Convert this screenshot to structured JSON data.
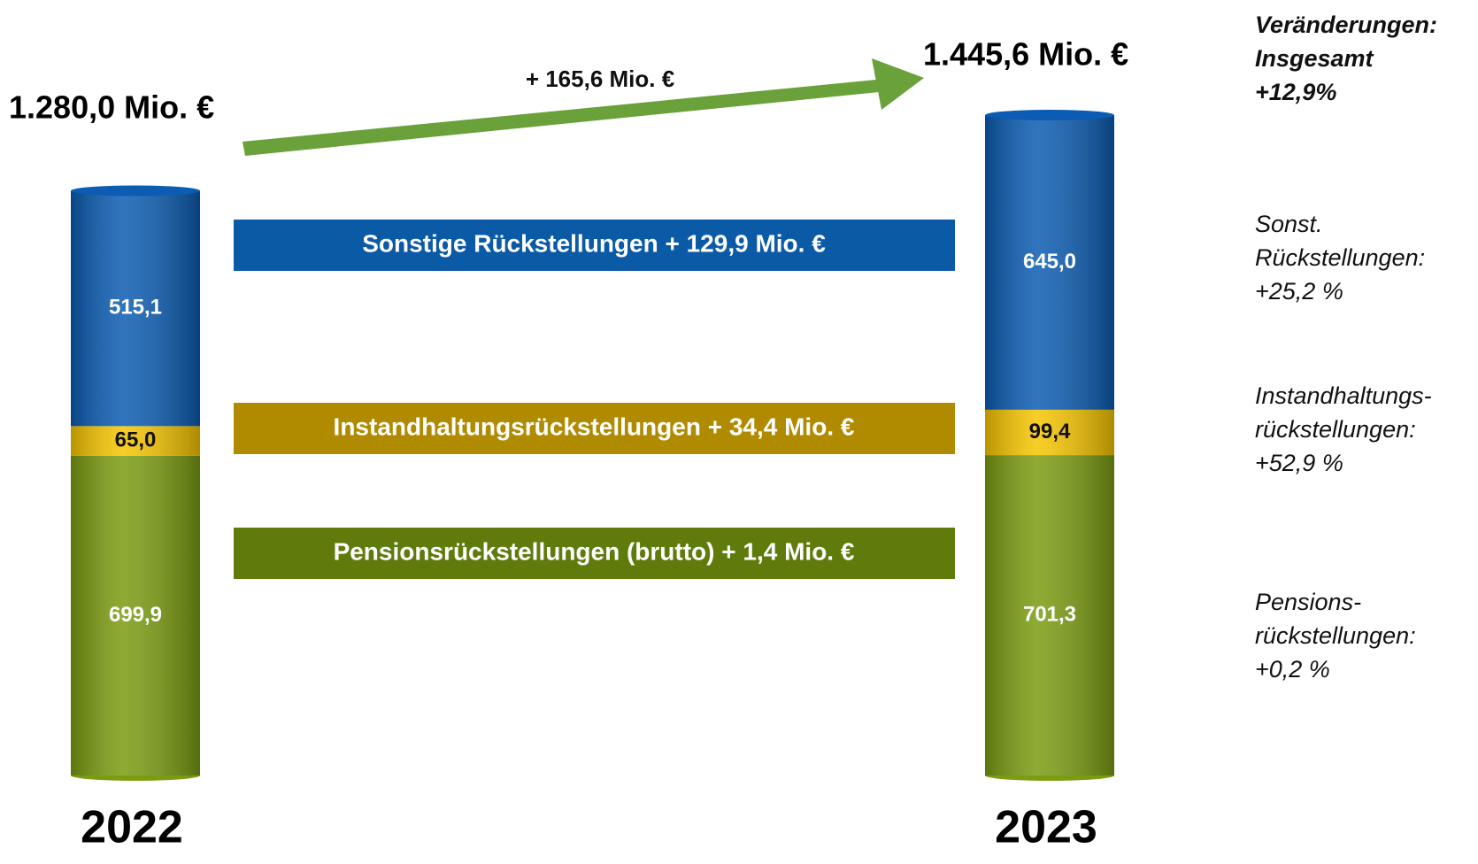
{
  "chart_data": {
    "type": "stacked-cylinder",
    "categories": [
      "2022",
      "2023"
    ],
    "series": [
      {
        "color": "#7a9c10",
        "values": [
          699.9,
          701.3
        ],
        "value_labels": [
          "699,9",
          "701,3"
        ]
      },
      {
        "color": "#f6c500",
        "values": [
          65.0,
          99.4
        ],
        "value_labels": [
          "65,0",
          "99,4"
        ]
      },
      {
        "color": "#0b5cb2",
        "values": [
          515.1,
          645.0
        ],
        "value_labels": [
          "515,1",
          "645,0"
        ]
      }
    ],
    "totals": [
      1280.0,
      1445.6
    ],
    "total_labels": [
      "1.280,0 Mio. €",
      "1.445,6 Mio. €"
    ],
    "change": {
      "value": 165.6,
      "label": "+ 165,6 Mio. €",
      "color": "#6aa13a"
    },
    "bands": [
      {
        "label": "Sonstige Rückstellungen + 129,9 Mio. €",
        "color": "#0b5aa6"
      },
      {
        "label": "Instandhaltungsrückstellungen + 34,4 Mio. €",
        "color": "#b08b00"
      },
      {
        "label": "Pensionsrückstellungen (brutto) + 1,4 Mio. €",
        "color": "#5f7b0c"
      }
    ],
    "notes": [
      [
        "Veränderungen:",
        "Insgesamt",
        "+12,9%"
      ],
      [
        "Sonst.",
        "Rückstellungen:",
        "+25,2 %"
      ],
      [
        "Instandhaltungs-",
        "rückstellungen:",
        "+52,9 %"
      ],
      [
        "Pensions-",
        "rückstellungen:",
        "+0,2 %"
      ]
    ]
  }
}
